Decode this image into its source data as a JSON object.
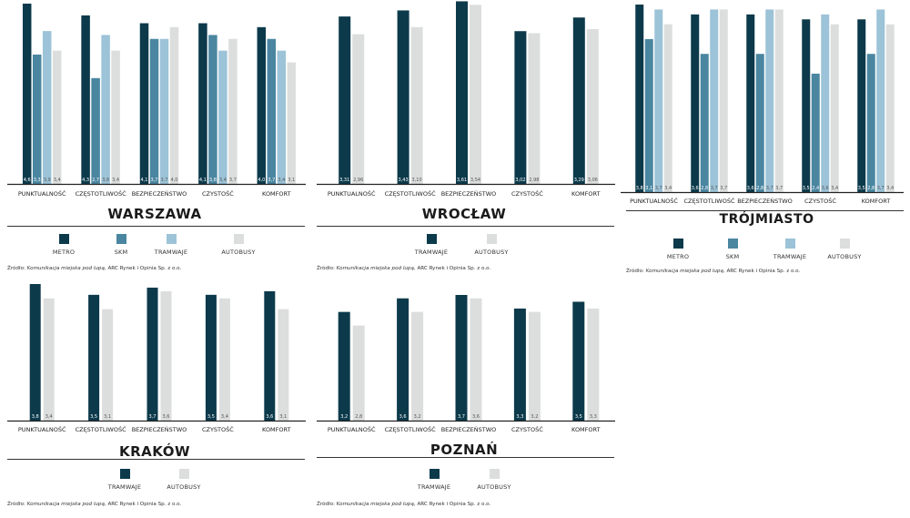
{
  "colors": {
    "metro": "#0c3a4b",
    "skm": "#4a86a0",
    "tramwaje": "#9cc3d7",
    "autobusy": "#dcdddd",
    "axis": "#222222"
  },
  "source": {
    "prefix": "Źródło: ",
    "italic": "Komunikacja miejska pod lupą",
    "suffix": ", ARC Rynek i Opinia Sp. z o.o."
  },
  "chart_data": [
    {
      "type": "bar",
      "title": "WARSZAWA",
      "categories": [
        "PUNKTUALNOŚĆ",
        "CZĘSTOTLIWOŚĆ",
        "BEZPIECZEŃSTWO",
        "CZYSTOŚĆ",
        "KOMFORT"
      ],
      "series": [
        {
          "name": "METRO",
          "color_key": "metro",
          "values": [
            4.6,
            4.3,
            4.1,
            4.1,
            4.0
          ],
          "labels": [
            "4,6",
            "4,3",
            "4,1",
            "4,1",
            "4,0"
          ]
        },
        {
          "name": "SKM",
          "color_key": "skm",
          "values": [
            3.3,
            2.7,
            3.7,
            3.8,
            3.7
          ],
          "labels": [
            "3,3",
            "2,7",
            "3,7",
            "3,8",
            "3,7"
          ]
        },
        {
          "name": "TRAMWAJE",
          "color_key": "tramwaje",
          "values": [
            3.9,
            3.8,
            3.7,
            3.4,
            3.4
          ],
          "labels": [
            "3,9",
            "3,8",
            "3,7",
            "3,4",
            "3,4"
          ]
        },
        {
          "name": "AUTOBUSY",
          "color_key": "autobusy",
          "values": [
            3.4,
            3.4,
            4.0,
            3.7,
            3.1
          ],
          "labels": [
            "3,4",
            "3,4",
            "4,0",
            "3,7",
            "3,1"
          ]
        }
      ],
      "ylim": [
        0,
        4.6
      ],
      "grid": false,
      "legend_position": "bottom"
    },
    {
      "type": "bar",
      "title": "WROCŁAW",
      "categories": [
        "PUNKTUALNOŚĆ",
        "CZĘSTOTLIWOŚĆ",
        "BEZPIECZEŃSTWO",
        "CZYSTOŚĆ",
        "KOMFORT"
      ],
      "series": [
        {
          "name": "TRAMWAJE",
          "color_key": "metro",
          "values": [
            3.31,
            3.43,
            3.61,
            3.02,
            3.29
          ],
          "labels": [
            "3,31",
            "3,43",
            "3,61",
            "3,02",
            "3,29"
          ]
        },
        {
          "name": "AUTOBUSY",
          "color_key": "autobusy",
          "values": [
            2.96,
            3.1,
            3.54,
            2.98,
            3.06
          ],
          "labels": [
            "2,96",
            "3,10",
            "3,54",
            "2,98",
            "3,06"
          ]
        }
      ],
      "ylim": [
        0,
        3.6
      ],
      "grid": false,
      "legend_position": "bottom"
    },
    {
      "type": "bar",
      "title": "TRÓJMIASTO",
      "categories": [
        "PUNKTUALNOŚĆ",
        "CZĘSTOTLIWOŚĆ",
        "BEZPIECZEŃSTWO",
        "CZYSTOŚĆ",
        "KOMFORT"
      ],
      "series": [
        {
          "name": "METRO",
          "color_key": "metro",
          "values": [
            3.8,
            3.6,
            3.6,
            3.5,
            3.5
          ],
          "labels": [
            "3,8",
            "3,6",
            "3,6",
            "3,5",
            "3,5"
          ]
        },
        {
          "name": "SKM",
          "color_key": "skm",
          "values": [
            3.1,
            2.8,
            2.8,
            2.4,
            2.8
          ],
          "labels": [
            "3,1",
            "2,8",
            "2,8",
            "2,4",
            "2,8"
          ]
        },
        {
          "name": "TRAMWAJE",
          "color_key": "tramwaje",
          "values": [
            3.7,
            3.7,
            3.7,
            3.6,
            3.7
          ],
          "labels": [
            "3,7",
            "3,7",
            "3,7",
            "3,6",
            "3,7"
          ]
        },
        {
          "name": "AUTOBUSY",
          "color_key": "autobusy",
          "values": [
            3.4,
            3.7,
            3.7,
            3.4,
            3.4
          ],
          "labels": [
            "3,4",
            "3,7",
            "3,7",
            "3,4",
            "3,4"
          ]
        }
      ],
      "ylim": [
        0,
        3.8
      ],
      "grid": false,
      "legend_position": "bottom"
    },
    {
      "type": "bar",
      "title": "KRAKÓW",
      "categories": [
        "PUNKTUALNOŚĆ",
        "CZĘSTOTLIWOŚĆ",
        "BEZPIECZEŃSTWO",
        "CZYSTOŚĆ",
        "KOMFORT"
      ],
      "series": [
        {
          "name": "TRAMWAJE",
          "color_key": "metro",
          "values": [
            3.8,
            3.5,
            3.7,
            3.5,
            3.6
          ],
          "labels": [
            "3,8",
            "3,5",
            "3,7",
            "3,5",
            "3,6"
          ]
        },
        {
          "name": "AUTOBUSY",
          "color_key": "autobusy",
          "values": [
            3.4,
            3.1,
            3.6,
            3.4,
            3.1
          ],
          "labels": [
            "3,4",
            "3,1",
            "3,6",
            "3,4",
            "3,1"
          ]
        }
      ],
      "ylim": [
        0,
        3.8
      ],
      "grid": false,
      "legend_position": "bottom"
    },
    {
      "type": "bar",
      "title": "POZNAŃ",
      "categories": [
        "PUNKTUALNOŚĆ",
        "CZĘSTOTLIWOŚĆ",
        "BEZPIECZEŃSTWO",
        "CZYSTOŚĆ",
        "KOMFORT"
      ],
      "series": [
        {
          "name": "TRAMWAJE",
          "color_key": "metro",
          "values": [
            3.2,
            3.6,
            3.7,
            3.3,
            3.5
          ],
          "labels": [
            "3,2",
            "3,6",
            "3,7",
            "3,3",
            "3,5"
          ]
        },
        {
          "name": "AUTOBUSY",
          "color_key": "autobusy",
          "values": [
            2.8,
            3.2,
            3.6,
            3.2,
            3.3
          ],
          "labels": [
            "2,8",
            "3,2",
            "3,6",
            "3,2",
            "3,3"
          ]
        }
      ],
      "ylim": [
        0,
        3.7
      ],
      "grid": false,
      "legend_position": "bottom"
    }
  ]
}
